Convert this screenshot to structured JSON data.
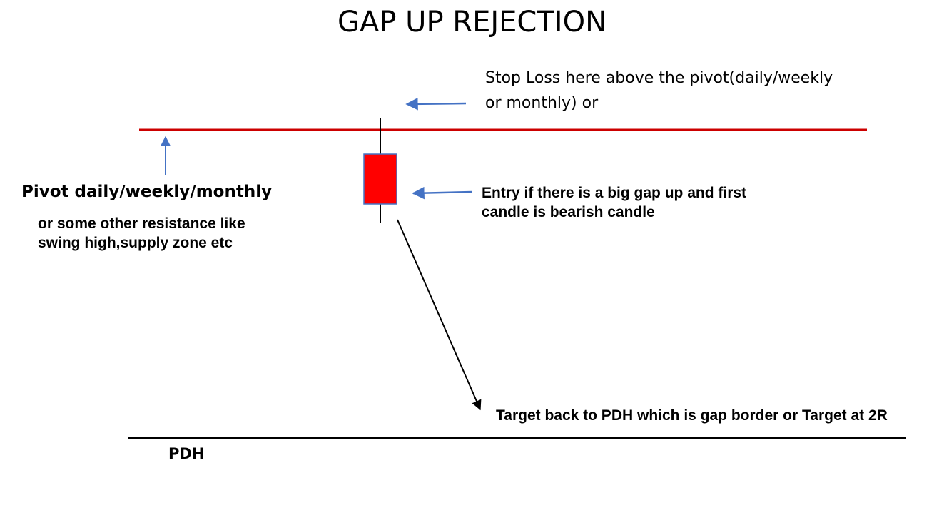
{
  "title": "GAP UP REJECTION",
  "stop_loss": {
    "line1": "Stop Loss here above the pivot(daily/weekly",
    "line2": "or monthly) or"
  },
  "pivot": {
    "label": "Pivot daily/weekly/monthly",
    "sub_line1": "or some other resistance like",
    "sub_line2": "swing high,supply zone etc"
  },
  "entry": {
    "line1": "Entry if there is a big gap up and first",
    "line2": "candle is bearish candle"
  },
  "target": {
    "text": "Target back to PDH which is gap border or Target at 2R"
  },
  "pdh": {
    "label": "PDH"
  },
  "colors": {
    "pivot_line": "#cc0000",
    "candle_body": "#ff0000",
    "candle_border": "#4472c4",
    "annotation_arrow": "#4472c4",
    "target_arrow": "#000000",
    "pdh_line": "#000000"
  }
}
